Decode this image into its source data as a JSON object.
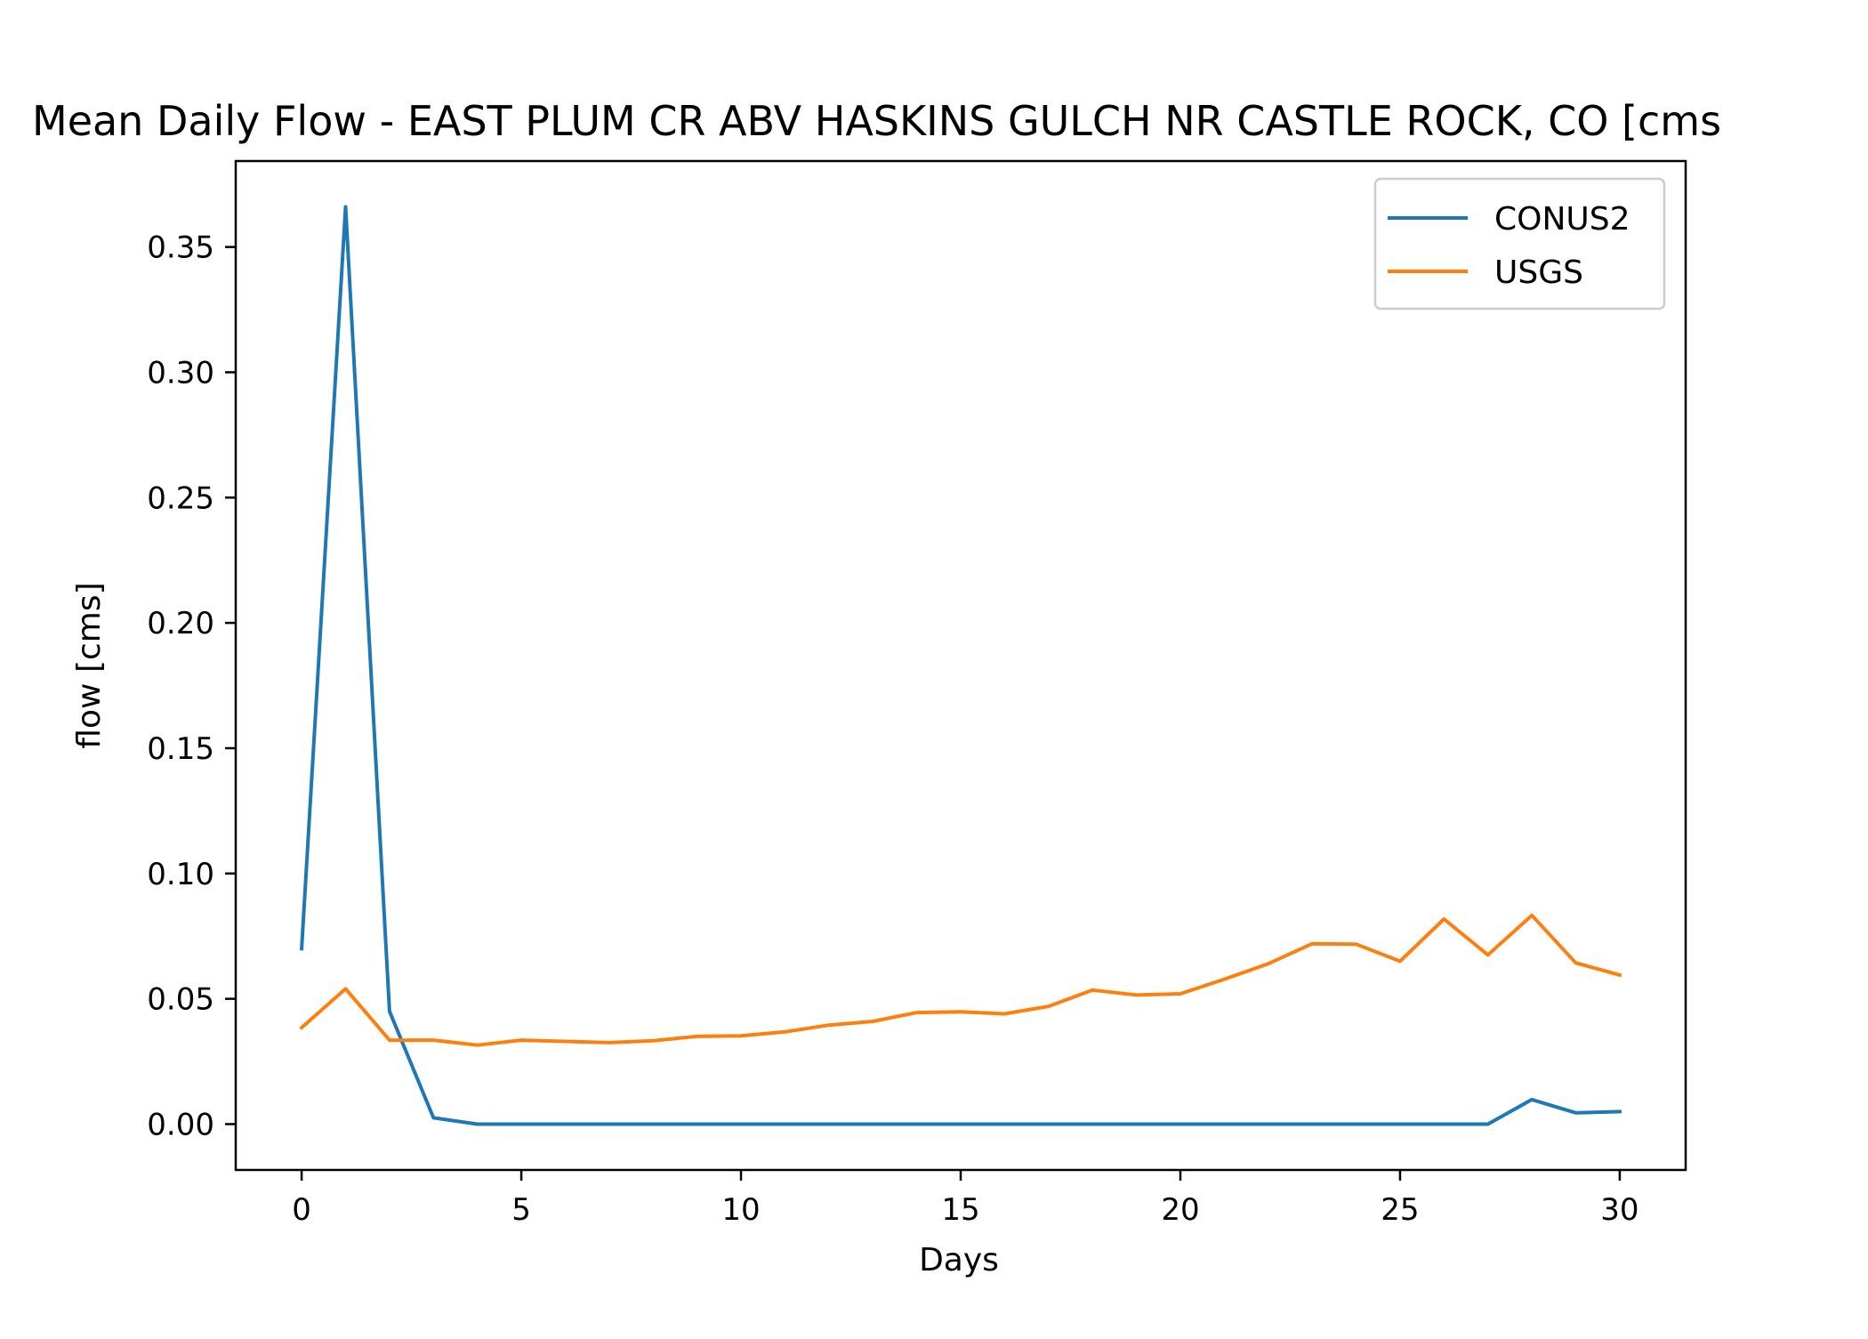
{
  "chart_data": {
    "type": "line",
    "title": "Mean Daily Flow - EAST PLUM CR ABV HASKINS GULCH NR CASTLE ROCK, CO [cms",
    "xlabel": "Days",
    "ylabel": "flow [cms]",
    "xlim": [
      -1.5,
      31.5
    ],
    "ylim": [
      -0.0183,
      0.3843
    ],
    "xticks": [
      0,
      5,
      10,
      15,
      20,
      25,
      30
    ],
    "xtick_labels": [
      "0",
      "5",
      "10",
      "15",
      "20",
      "25",
      "30"
    ],
    "yticks": [
      0.0,
      0.05,
      0.1,
      0.15,
      0.2,
      0.25,
      0.3,
      0.35
    ],
    "ytick_labels": [
      "0.00",
      "0.05",
      "0.10",
      "0.15",
      "0.20",
      "0.25",
      "0.30",
      "0.35"
    ],
    "grid": false,
    "legend_position": "top-right",
    "x": [
      0,
      1,
      2,
      3,
      4,
      5,
      6,
      7,
      8,
      9,
      10,
      11,
      12,
      13,
      14,
      15,
      16,
      17,
      18,
      19,
      20,
      21,
      22,
      23,
      24,
      25,
      26,
      27,
      28,
      29,
      30
    ],
    "series": [
      {
        "name": "CONUS2",
        "color": "#1f77b4",
        "values": [
          0.07,
          0.366,
          0.045,
          0.0025,
          0.0,
          0.0,
          0.0,
          0.0,
          0.0,
          0.0,
          0.0,
          0.0,
          0.0,
          0.0,
          0.0,
          0.0,
          0.0,
          0.0,
          0.0,
          0.0,
          0.0,
          0.0,
          0.0,
          0.0,
          0.0,
          0.0,
          0.0,
          0.0,
          0.0098,
          0.0045,
          0.005
        ]
      },
      {
        "name": "USGS",
        "color": "#ff7f0e",
        "values": [
          0.0385,
          0.054,
          0.0335,
          0.0335,
          0.0315,
          0.0335,
          0.033,
          0.0325,
          0.0333,
          0.035,
          0.0352,
          0.0368,
          0.0395,
          0.041,
          0.0445,
          0.0448,
          0.044,
          0.047,
          0.0535,
          0.0515,
          0.052,
          0.0578,
          0.064,
          0.072,
          0.0718,
          0.065,
          0.0818,
          0.0675,
          0.0833,
          0.0643,
          0.0595
        ]
      }
    ]
  }
}
